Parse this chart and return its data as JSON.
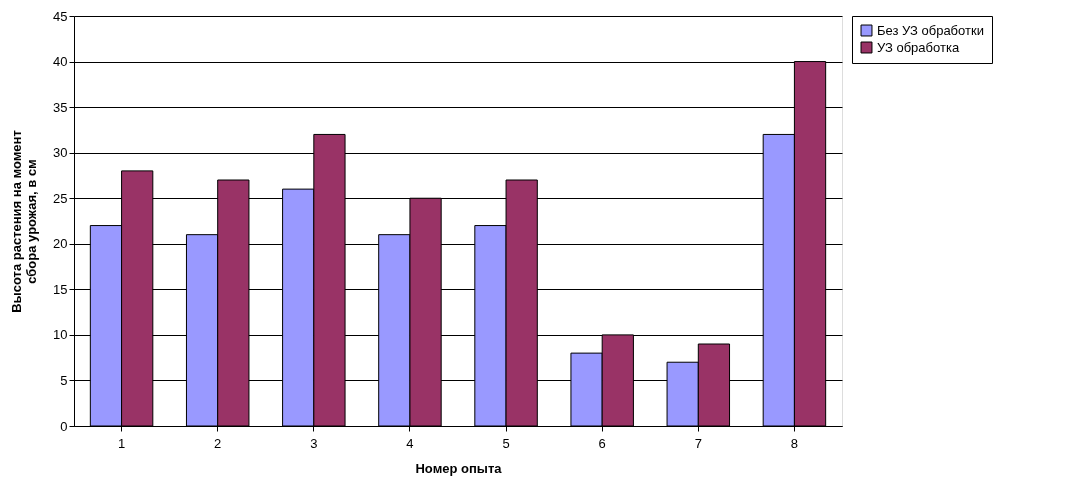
{
  "chart_data": {
    "type": "bar",
    "xlabel": "Номер опыта",
    "ylabel": "Высота растения на момент сбора урожая, в см",
    "categories": [
      "1",
      "2",
      "3",
      "4",
      "5",
      "6",
      "7",
      "8"
    ],
    "series": [
      {
        "name": "Без УЗ обработки",
        "color": "#9999ff",
        "values": [
          22,
          21,
          26,
          21,
          22,
          8,
          7,
          32
        ]
      },
      {
        "name": "УЗ обработка",
        "color": "#993366",
        "values": [
          28,
          27,
          32,
          25,
          27,
          10,
          9,
          40
        ]
      }
    ],
    "ylim": [
      0,
      45
    ],
    "yticks": [
      0,
      5,
      10,
      15,
      20,
      25,
      30,
      35,
      40,
      45
    ],
    "grid": "y",
    "legend": "right"
  }
}
